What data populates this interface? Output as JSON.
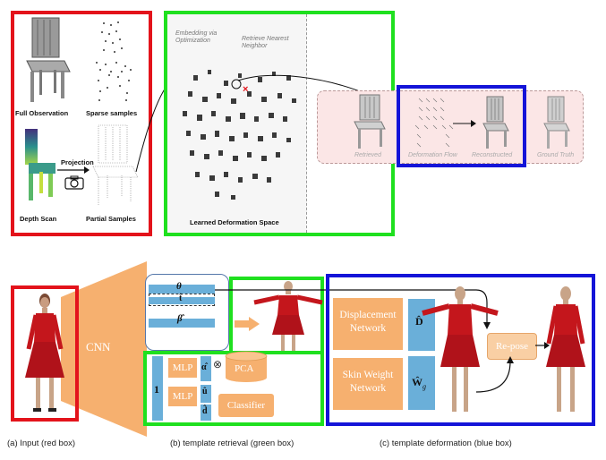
{
  "top": {
    "labels": {
      "full_observation": "Full Observation",
      "sparse_samples": "Sparse samples",
      "projection": "Projection",
      "depth_scan": "Depth Scan",
      "partial_samples": "Partial Samples",
      "embedding": "Embedding via Optimization",
      "retrieve": "Retrieve Nearest Neighbor",
      "learned_space": "Learned Deformation Space",
      "retrieved": "Retrieved",
      "deformation_flow": "Deformation Flow",
      "reconstructed": "Reconstructed",
      "ground_truth": "Ground Truth"
    }
  },
  "bottom": {
    "cnn": "CNN",
    "theta": "θ",
    "t_hat": "t̂",
    "beta_hat": "β̂",
    "mlp1": "MLP",
    "mlp2": "MLP",
    "alpha_hat": "α̂",
    "u_hat": "û",
    "d_hat": "d̂",
    "one": "1",
    "otimes": "⊗",
    "pca": "PCA",
    "classifier": "Classifier",
    "displacement": "Displacement Network",
    "skin_weight": "Skin Weight Network",
    "D_hat": "D̂",
    "W_hat": "Ŵ",
    "W_sub": "g",
    "repose": "Re-pose"
  },
  "captions": {
    "a": "(a) Input (red box)",
    "b": "(b) template retrieval (green box)",
    "c": "(c) template deformation (blue box)"
  },
  "colors": {
    "red": "#e3131b",
    "green": "#1fe01f",
    "blue": "#1414d8",
    "orange": "#f6b06f",
    "light_blue": "#6aafd9",
    "dress_red": "#c4161c"
  }
}
